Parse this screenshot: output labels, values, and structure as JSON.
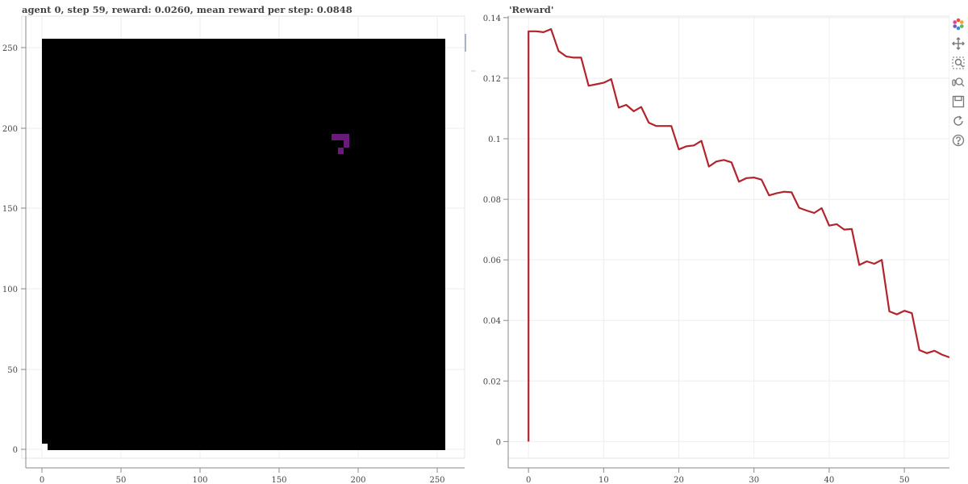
{
  "left_plot": {
    "title": "agent 0, step 59, reward: 0.0260, mean reward per step: 0.0848",
    "x_ticks": [
      "0",
      "50",
      "100",
      "150",
      "200",
      "250"
    ],
    "y_ticks": [
      "0",
      "50",
      "100",
      "150",
      "200",
      "250"
    ],
    "background_color": "#000000",
    "agent_color": "#6a1b7a"
  },
  "chart_data": {
    "type": "line",
    "title": "'Reward'",
    "xlim": [
      -2.7,
      56
    ],
    "ylim": [
      -0.0055,
      0.1405
    ],
    "x_ticks": [
      0,
      10,
      20,
      30,
      40,
      50
    ],
    "y_ticks": [
      0,
      0.02,
      0.04,
      0.06,
      0.08,
      0.1,
      0.12,
      0.14
    ],
    "x_tick_labels": [
      "0",
      "10",
      "20",
      "30",
      "40",
      "50"
    ],
    "y_tick_labels": [
      "0",
      "0.02",
      "0.04",
      "0.06",
      "0.08",
      "0.1",
      "0.12",
      "0.14"
    ],
    "grid": true,
    "line_color": "#b2242c",
    "series": [
      {
        "x": [
          0,
          0,
          1,
          2,
          3,
          4,
          5,
          6,
          7,
          8,
          9,
          10,
          11,
          12,
          13,
          14,
          15,
          16,
          17,
          18,
          19,
          20,
          21,
          22,
          23,
          24,
          25,
          26,
          27,
          28,
          29,
          30,
          31,
          32,
          33,
          34,
          35,
          36,
          37,
          38,
          39,
          40,
          41,
          42,
          43,
          44,
          45,
          46,
          47,
          48,
          49,
          50,
          51,
          52,
          53,
          54,
          55,
          56
        ],
        "y": [
          0,
          0.1355,
          0.1355,
          0.1352,
          0.1362,
          0.129,
          0.1272,
          0.1268,
          0.1268,
          0.1175,
          0.118,
          0.1185,
          0.1197,
          0.1103,
          0.1112,
          0.1091,
          0.1105,
          0.1053,
          0.1042,
          0.1042,
          0.1042,
          0.0965,
          0.0975,
          0.0978,
          0.0993,
          0.0908,
          0.0925,
          0.093,
          0.0922,
          0.0858,
          0.087,
          0.0872,
          0.0865,
          0.0813,
          0.082,
          0.0825,
          0.0823,
          0.0772,
          0.0763,
          0.0755,
          0.0771,
          0.0713,
          0.0718,
          0.07,
          0.0702,
          0.0583,
          0.0595,
          0.0587,
          0.06,
          0.043,
          0.042,
          0.0432,
          0.0424,
          0.0302,
          0.0292,
          0.03,
          0.0287,
          0.0278
        ]
      }
    ]
  },
  "toolbar": {
    "icons": [
      "bokeh-logo-icon",
      "pan-icon",
      "box-zoom-icon",
      "wheel-zoom-icon",
      "save-icon",
      "reset-icon",
      "help-icon"
    ]
  }
}
